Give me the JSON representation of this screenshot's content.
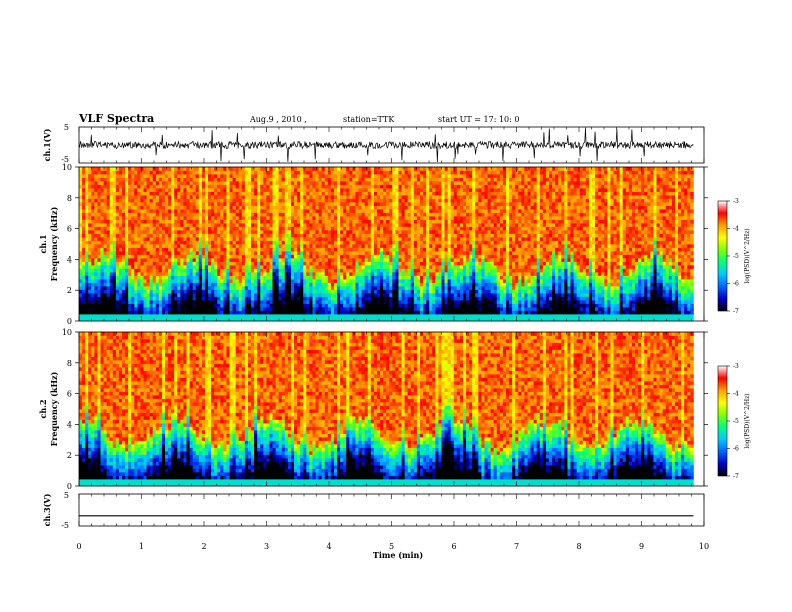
{
  "header": {
    "title": "VLF Spectra",
    "date": "Aug.9 , 2010 ,",
    "station": "station=TTK",
    "start": "start UT = 17: 10: 0"
  },
  "panels": {
    "ch1_wave": {
      "label": "ch.1(V)",
      "ticks": [
        "5",
        "-5"
      ]
    },
    "spec1": {
      "label_ch": "ch.1",
      "label_freq": "Frequency (kHz)"
    },
    "spec2": {
      "label_ch": "ch.2",
      "label_freq": "Frequency (kHz)"
    },
    "ch3_wave": {
      "label": "ch.3(V)",
      "ticks": [
        "5",
        "-5"
      ]
    }
  },
  "colorbar": {
    "label": "log(PSD)(V^2/Hz)",
    "ticks": [
      "-3",
      "-4",
      "-5",
      "-6",
      "-7"
    ],
    "stops": [
      "#000000",
      "#0000c8",
      "#0064ff",
      "#00c8ff",
      "#00ff80",
      "#80ff00",
      "#ffff00",
      "#ffa000",
      "#ff0000",
      "#ffffff"
    ]
  },
  "chart_data": [
    {
      "type": "line",
      "series_label": "ch.1(V)",
      "xlim": [
        0,
        10
      ],
      "ylim": [
        -5,
        5
      ],
      "yticks": [
        5,
        -5
      ],
      "note": "noise waveform centered near 0 V"
    },
    {
      "type": "heatmap",
      "series_label": "ch.1",
      "ylabel": "Frequency (kHz)",
      "xlim": [
        0,
        10
      ],
      "ylim": [
        0,
        10
      ],
      "yticks": [
        0,
        2,
        4,
        6,
        8,
        10
      ],
      "zlim": [
        -7,
        -3
      ],
      "z_label": "log(PSD)(V^2/Hz)",
      "data_end_min": 9.83
    },
    {
      "type": "heatmap",
      "series_label": "ch.2",
      "ylabel": "Frequency (kHz)",
      "xlim": [
        0,
        10
      ],
      "ylim": [
        0,
        10
      ],
      "yticks": [
        0,
        2,
        4,
        6,
        8,
        10
      ],
      "zlim": [
        -7,
        -3
      ],
      "z_label": "log(PSD)(V^2/Hz)",
      "data_end_min": 9.83
    },
    {
      "type": "line",
      "series_label": "ch.3(V)",
      "xlim": [
        0,
        10
      ],
      "ylim": [
        -5,
        5
      ],
      "yticks": [
        5,
        -5
      ],
      "xlabel": "Time (min)",
      "xticks": [
        0,
        1,
        2,
        3,
        4,
        5,
        6,
        7,
        8,
        9,
        10
      ],
      "level_v": -1.8
    }
  ]
}
